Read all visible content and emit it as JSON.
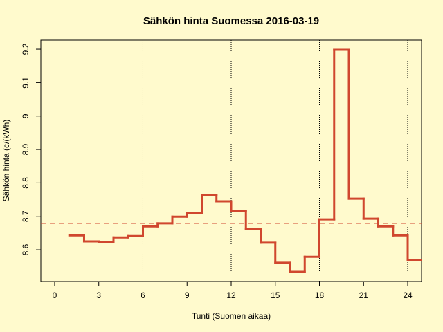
{
  "chart_data": {
    "type": "step",
    "title": "Sähkön hinta Suomessa 2016-03-19",
    "x_label": "Tunti (Suomen aikaa)",
    "y_label": "Sähkön hinta (c/(kWh)",
    "x": [
      1,
      2,
      3,
      4,
      5,
      6,
      7,
      8,
      9,
      10,
      11,
      12,
      13,
      14,
      15,
      16,
      17,
      18,
      19,
      20,
      21,
      22,
      23,
      24
    ],
    "series": [
      {
        "color": "#d0472e",
        "values": [
          8.643,
          8.625,
          8.623,
          8.637,
          8.641,
          8.67,
          8.679,
          8.699,
          8.71,
          8.764,
          8.745,
          8.716,
          8.662,
          8.621,
          8.561,
          8.534,
          8.579,
          8.691,
          9.198,
          8.753,
          8.693,
          8.67,
          8.643,
          8.569
        ]
      }
    ],
    "reference_line": 8.679,
    "vlines": [
      6,
      12,
      18,
      24
    ],
    "xlim": [
      -0.94,
      24.94
    ],
    "xticks": [
      0,
      3,
      6,
      9,
      12,
      15,
      18,
      21,
      24
    ],
    "ylim": [
      8.505,
      9.227
    ],
    "yticks": [
      8.6,
      8.7,
      8.8,
      8.9,
      9.0,
      9.1,
      9.2
    ]
  }
}
